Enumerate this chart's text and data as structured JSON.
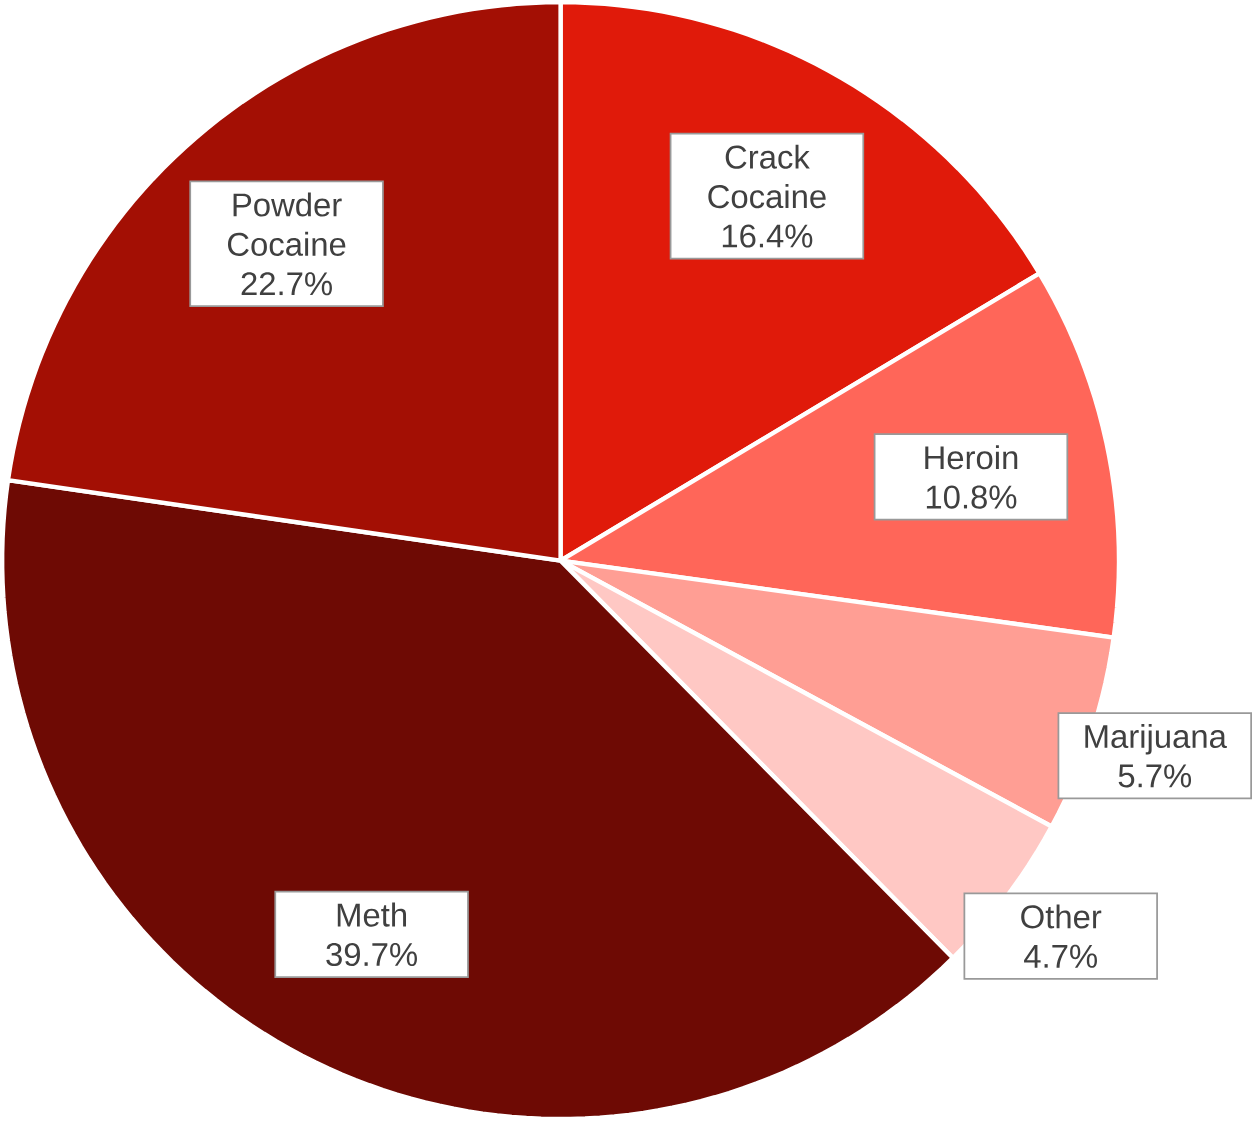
{
  "chart_data": {
    "type": "pie",
    "categories": [
      "Crack Cocaine",
      "Heroin",
      "Marijuana",
      "Other",
      "Meth",
      "Powder Cocaine"
    ],
    "values": [
      16.4,
      10.8,
      5.7,
      4.7,
      39.7,
      22.7
    ],
    "colors": [
      "#e01a0a",
      "#ff6659",
      "#ff9e94",
      "#ffc8c4",
      "#6e0a04",
      "#a30f04"
    ],
    "value_labels": [
      "16.4%",
      "10.8%",
      "5.7%",
      "4.7%",
      "39.7%",
      "22.7%"
    ]
  }
}
